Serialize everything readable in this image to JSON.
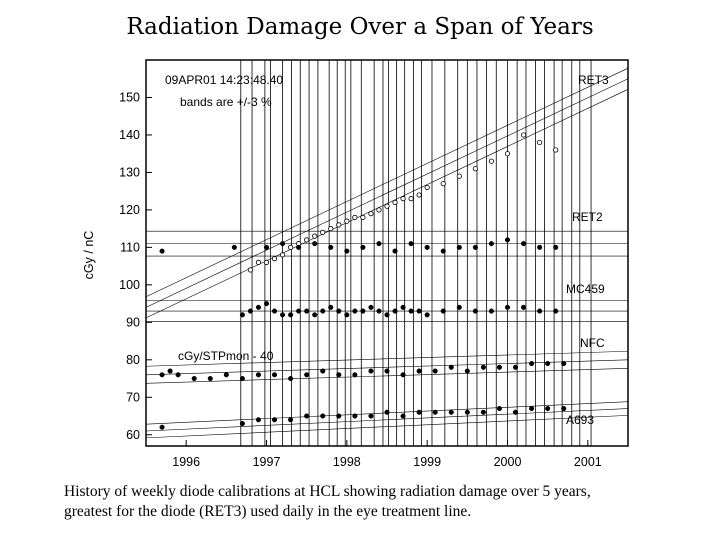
{
  "slide": {
    "title": "Radiation Damage Over a Span of Years",
    "caption_line1": "History of weekly diode calibrations at HCL showing radiation damage over 5 years,",
    "caption_line2": "greatest for the diode (RET3) used daily in the eye treatment line."
  },
  "chart_data": {
    "type": "scatter",
    "ylabel": "cGy / nC",
    "xlim": [
      1995.5,
      2001.5
    ],
    "ylim": [
      57,
      160
    ],
    "x_ticks": [
      1996,
      1997,
      1998,
      1999,
      2000,
      2001
    ],
    "y_ticks": [
      60,
      70,
      80,
      90,
      100,
      110,
      120,
      130,
      140,
      150
    ],
    "annotations": {
      "timestamp": "09APR01  14:23:48.40",
      "bands": "bands are     +/-3 %",
      "scale_note": "cGy/STPmon - 40"
    },
    "session_markers_years": [
      1996.68,
      1996.82,
      1996.98,
      1997.05,
      1997.2,
      1997.31,
      1997.42,
      1997.53,
      1997.64,
      1997.78,
      1997.88,
      1997.98,
      1998.05,
      1998.18,
      1998.34,
      1998.45,
      1998.52,
      1998.62,
      1998.72,
      1998.83,
      1998.93,
      1999.06,
      1999.22,
      1999.38,
      1999.5,
      1999.62,
      1999.74,
      1999.86,
      2000.0,
      2000.12,
      2000.23,
      2000.35,
      2000.46,
      2000.58,
      2000.68,
      2000.8,
      2000.9,
      2001.04
    ],
    "series": [
      {
        "name": "RET3",
        "marker": "open",
        "trend": {
          "x": [
            1995.5,
            2001.5
          ],
          "y": [
            94,
            155
          ]
        },
        "points": {
          "x": [
            1996.8,
            1996.9,
            1997.0,
            1997.1,
            1997.2,
            1997.3,
            1997.4,
            1997.5,
            1997.6,
            1997.7,
            1997.8,
            1997.9,
            1998.0,
            1998.1,
            1998.2,
            1998.3,
            1998.4,
            1998.5,
            1998.6,
            1998.7,
            1998.8,
            1998.9,
            1999.0,
            1999.2,
            1999.4,
            1999.6,
            1999.8,
            2000.0,
            2000.2,
            2000.4,
            2000.6
          ],
          "y": [
            104,
            106,
            106,
            107,
            108,
            110,
            111,
            112,
            113,
            114,
            115,
            116,
            117,
            118,
            118,
            119,
            120,
            121,
            122,
            123,
            123,
            124,
            126,
            127,
            129,
            131,
            133,
            135,
            140,
            138,
            136
          ]
        }
      },
      {
        "name": "RET2",
        "marker": "filled",
        "trend": {
          "x": [
            1995.5,
            2001.5
          ],
          "y": [
            111,
            111
          ]
        },
        "points": {
          "x": [
            1995.7,
            1996.6,
            1997.0,
            1997.2,
            1997.4,
            1997.6,
            1997.8,
            1998.0,
            1998.2,
            1998.4,
            1998.6,
            1998.8,
            1999.0,
            1999.2,
            1999.4,
            1999.6,
            1999.8,
            2000.0,
            2000.2,
            2000.4,
            2000.6
          ],
          "y": [
            109,
            110,
            110,
            111,
            110,
            111,
            110,
            109,
            110,
            111,
            109,
            111,
            110,
            109,
            110,
            110,
            111,
            112,
            111,
            110,
            110
          ]
        }
      },
      {
        "name": "MC459",
        "marker": "filled",
        "trend": {
          "x": [
            1995.5,
            2001.5
          ],
          "y": [
            93,
            93
          ]
        },
        "points": {
          "x": [
            1996.7,
            1996.8,
            1996.9,
            1997.0,
            1997.1,
            1997.2,
            1997.3,
            1997.4,
            1997.5,
            1997.6,
            1997.7,
            1997.8,
            1997.9,
            1998.0,
            1998.1,
            1998.2,
            1998.3,
            1998.4,
            1998.5,
            1998.6,
            1998.7,
            1998.8,
            1998.9,
            1999.0,
            1999.2,
            1999.4,
            1999.6,
            1999.8,
            2000.0,
            2000.2,
            2000.4,
            2000.6
          ],
          "y": [
            92,
            93,
            94,
            95,
            93,
            92,
            92,
            93,
            93,
            92,
            93,
            94,
            93,
            92,
            93,
            93,
            94,
            93,
            92,
            93,
            94,
            93,
            93,
            92,
            93,
            94,
            93,
            93,
            94,
            94,
            93,
            93
          ]
        }
      },
      {
        "name": "NFC",
        "marker": "filled",
        "trend": {
          "x": [
            1995.5,
            2001.5
          ],
          "y": [
            76,
            80
          ]
        },
        "points": {
          "x": [
            1995.7,
            1995.8,
            1995.9,
            1996.1,
            1996.3,
            1996.5,
            1996.7,
            1996.9,
            1997.1,
            1997.3,
            1997.5,
            1997.7,
            1997.9,
            1998.1,
            1998.3,
            1998.5,
            1998.7,
            1998.9,
            1999.1,
            1999.3,
            1999.5,
            1999.7,
            1999.9,
            2000.1,
            2000.3,
            2000.5,
            2000.7
          ],
          "y": [
            76,
            77,
            76,
            75,
            75,
            76,
            75,
            76,
            76,
            75,
            76,
            77,
            76,
            76,
            77,
            77,
            76,
            77,
            77,
            78,
            77,
            78,
            78,
            78,
            79,
            79,
            79
          ]
        }
      },
      {
        "name": "A693",
        "marker": "filled",
        "trend": {
          "x": [
            1995.5,
            2001.5
          ],
          "y": [
            61,
            67
          ]
        },
        "points": {
          "x": [
            1995.7,
            1996.7,
            1996.9,
            1997.1,
            1997.3,
            1997.5,
            1997.7,
            1997.9,
            1998.1,
            1998.3,
            1998.5,
            1998.7,
            1998.9,
            1999.1,
            1999.3,
            1999.5,
            1999.7,
            1999.9,
            2000.1,
            2000.3,
            2000.5,
            2000.7
          ],
          "y": [
            62,
            63,
            64,
            64,
            64,
            65,
            65,
            65,
            65,
            65,
            66,
            65,
            66,
            66,
            66,
            66,
            66,
            67,
            66,
            67,
            67,
            67
          ]
        }
      }
    ]
  }
}
